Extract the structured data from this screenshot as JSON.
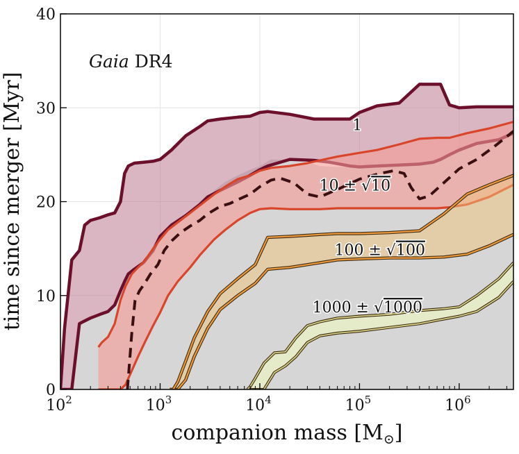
{
  "chart_data": {
    "type": "area",
    "title": "",
    "annotation": {
      "italic": "Gaia",
      "rest": " DR4"
    },
    "xlabel": "companion mass [M",
    "xlabel_sub": "⊙",
    "xlabel_close": "]",
    "ylabel": "time since merger [Myr]",
    "xscale": "log",
    "xlim": [
      100,
      3500000
    ],
    "ylim": [
      0,
      40
    ],
    "grid": true,
    "x_ticks": [
      {
        "value": 100,
        "base": "10",
        "exp": "2"
      },
      {
        "value": 1000,
        "base": "10",
        "exp": "3"
      },
      {
        "value": 10000,
        "base": "10",
        "exp": "4"
      },
      {
        "value": 100000,
        "base": "10",
        "exp": "5"
      },
      {
        "value": 1000000,
        "base": "10",
        "exp": "6"
      }
    ],
    "y_ticks": [
      {
        "value": 0,
        "label": "0"
      },
      {
        "value": 10,
        "label": "10"
      },
      {
        "value": 20,
        "label": "20"
      },
      {
        "value": 30,
        "label": "30"
      },
      {
        "value": 40,
        "label": "40"
      }
    ],
    "background_region": {
      "name": "excluded",
      "color": "#d6d6d6",
      "x": [
        100,
        130,
        155,
        200,
        250,
        300,
        350,
        400,
        480,
        560,
        680,
        850,
        1000,
        1300,
        1800,
        2500,
        3500,
        4500,
        6000,
        8000,
        10000,
        13000,
        20000,
        30000,
        40000,
        60000,
        100000,
        200000,
        400000,
        800000,
        1500000,
        2500000,
        3500000
      ],
      "y": [
        0,
        0,
        7,
        7.6,
        8,
        8.3,
        9,
        10.5,
        12.3,
        12.8,
        13.5,
        14.8,
        16.3,
        17.5,
        18.5,
        19.7,
        21.2,
        22.1,
        22.8,
        23.4,
        23.8,
        24.5,
        24.4,
        24.2,
        23.8,
        23.7,
        23.8,
        23.9,
        24.0,
        25.0,
        26.2,
        26.6,
        27.3
      ]
    },
    "series": [
      {
        "name": "1",
        "label": "1",
        "fill": "#b97a8f",
        "stroke": "#6b0f2b",
        "stroke_width": 4.5,
        "fill_opacity": 0.55,
        "x": [
          100,
          110,
          130,
          155,
          175,
          200,
          250,
          300,
          350,
          400,
          440,
          480,
          550,
          680,
          850,
          1000,
          1300,
          1800,
          2500,
          3000,
          4000,
          6000,
          8000,
          10000,
          12000,
          20000,
          35000,
          50000,
          80000,
          100000,
          150000,
          250000,
          400000,
          550000,
          650000,
          800000,
          1000000,
          1500000,
          2500000,
          3500000
        ],
        "upper": [
          0,
          6.5,
          13.8,
          14.8,
          17.5,
          18,
          18.3,
          18.6,
          18.8,
          20,
          23,
          23.8,
          24.1,
          24.2,
          24.3,
          24.5,
          25.5,
          27,
          28,
          28.6,
          28.8,
          29,
          29.1,
          29.5,
          29.6,
          29.3,
          28.8,
          28.8,
          28.8,
          29.5,
          30.2,
          30.5,
          32.5,
          32.5,
          32.5,
          30.3,
          30,
          30.1,
          30.1,
          30.1
        ],
        "lower": [
          0,
          0,
          0,
          7,
          7.3,
          7.6,
          8,
          8.3,
          9,
          10.5,
          11.5,
          12.3,
          12.8,
          13.5,
          14.8,
          16.3,
          17.5,
          18.5,
          19.7,
          20.5,
          21.2,
          22.1,
          22.8,
          23.4,
          23.8,
          24.5,
          24.4,
          24.2,
          23.8,
          23.7,
          23.8,
          23.9,
          24.0,
          24.2,
          24.5,
          25.0,
          25.5,
          26.2,
          26.6,
          27.3
        ],
        "label_at": {
          "x": 95000,
          "y": 27.6
        }
      },
      {
        "name": "10 ± sqrt(10)",
        "label_prefix": "10 ± ",
        "label_root": "10",
        "fill": "#f59a93",
        "stroke": "#d9452a",
        "stroke_width": 3.2,
        "fill_opacity": 0.6,
        "x": [
          240,
          260,
          300,
          350,
          400,
          450,
          520,
          600,
          700,
          850,
          1000,
          1200,
          1500,
          2000,
          2500,
          3500,
          4500,
          6000,
          8000,
          10000,
          13000,
          20000,
          30000,
          40000,
          60000,
          100000,
          150000,
          250000,
          400000,
          600000,
          800000,
          1200000,
          2000000,
          3500000
        ],
        "upper": [
          4.5,
          5.0,
          5.6,
          7.0,
          9.5,
          11.0,
          12.3,
          13.0,
          13.7,
          15.0,
          16.0,
          17.0,
          17.8,
          18.8,
          19.6,
          20.8,
          21.6,
          22.4,
          22.8,
          23.3,
          23.6,
          23.8,
          24.1,
          24.4,
          24.8,
          25.2,
          25.5,
          26.1,
          26.7,
          26.8,
          26.8,
          27.3,
          27.8,
          28.5
        ],
        "lower": [
          0,
          0,
          0,
          0,
          0,
          0.5,
          2.0,
          3.5,
          5.0,
          6.8,
          8.2,
          10.0,
          11.5,
          13.0,
          14.3,
          16.0,
          17.0,
          18.0,
          18.8,
          19.2,
          19.3,
          19.2,
          19.2,
          19.2,
          19.3,
          19.3,
          19.3,
          19.3,
          19.3,
          19.3,
          19.4,
          19.7,
          20.5,
          21.8
        ],
        "median": {
          "x": [
            470,
            520,
            560,
            620,
            700,
            800,
            950,
            1100,
            1300,
            1600,
            2000,
            2500,
            3000,
            4000,
            5000,
            6000,
            8000,
            10000,
            13000,
            16000,
            22000,
            30000,
            40000,
            60000,
            100000,
            160000,
            220000,
            280000,
            330000,
            400000,
            500000,
            700000,
            1000000,
            1500000,
            2200000,
            3500000
          ],
          "y": [
            0,
            6.0,
            9.5,
            10.5,
            11.3,
            12.3,
            13.3,
            14.8,
            15.8,
            16.7,
            17.4,
            18.0,
            18.7,
            19.5,
            19.8,
            20.2,
            20.8,
            21.6,
            22.3,
            22.5,
            22.0,
            20.8,
            20.5,
            21.3,
            22.4,
            23.0,
            23.3,
            23.0,
            21.5,
            20.3,
            20.6,
            22.0,
            23.5,
            24.5,
            25.8,
            27.5
          ]
        },
        "label_at": {
          "x": 90000,
          "y": 21.2
        }
      },
      {
        "name": "100 ± sqrt(100)",
        "label_prefix": "100 ± ",
        "label_root": "100",
        "fill": "#f0c27a",
        "stroke": "#f09a3e",
        "stroke_width": 2.2,
        "fill_opacity": 0.5,
        "x": [
          1250,
          1350,
          1500,
          1800,
          2200,
          3000,
          4000,
          6000,
          9000,
          12000,
          20000,
          40000,
          60000,
          100000,
          200000,
          400000,
          700000,
          1200000,
          2000000,
          3500000
        ],
        "upper": [
          0,
          0,
          0.8,
          3.0,
          5.5,
          8.3,
          10.2,
          11.8,
          13.3,
          16.2,
          16.3,
          16.5,
          16.6,
          16.6,
          16.7,
          16.9,
          18.7,
          20.8,
          21.8,
          22.8
        ],
        "lower": [
          0,
          0,
          0,
          1.0,
          3.5,
          6.5,
          8.5,
          10.0,
          11.3,
          12.8,
          13.0,
          13.5,
          13.8,
          13.9,
          14.0,
          14.0,
          14.1,
          14.4,
          15.3,
          16.5
        ],
        "label_at": {
          "x": 160000,
          "y": 14.3
        }
      },
      {
        "name": "1000 ± sqrt(1000)",
        "label_prefix": "1000 ± ",
        "label_root": "1000",
        "fill": "#eaf0c4",
        "stroke": "#d6d088",
        "stroke_width": 1.8,
        "fill_opacity": 0.75,
        "x": [
          7500,
          8000,
          9000,
          11000,
          14000,
          18000,
          23000,
          30000,
          40000,
          60000,
          100000,
          200000,
          400000,
          700000,
          1000000,
          1500000,
          2500000,
          3500000
        ],
        "upper": [
          0,
          0.3,
          1.2,
          2.8,
          3.9,
          4.0,
          5.5,
          6.8,
          7.2,
          7.6,
          7.8,
          8.0,
          8.4,
          8.6,
          8.8,
          10.0,
          11.8,
          13.5
        ],
        "lower": [
          0,
          0,
          0,
          0,
          1.8,
          2.5,
          3.5,
          5.0,
          5.7,
          6.0,
          6.2,
          6.6,
          7.0,
          7.5,
          7.8,
          8.3,
          9.8,
          11.5
        ],
        "label_at": {
          "x": 120000,
          "y": 8.2
        }
      }
    ]
  }
}
